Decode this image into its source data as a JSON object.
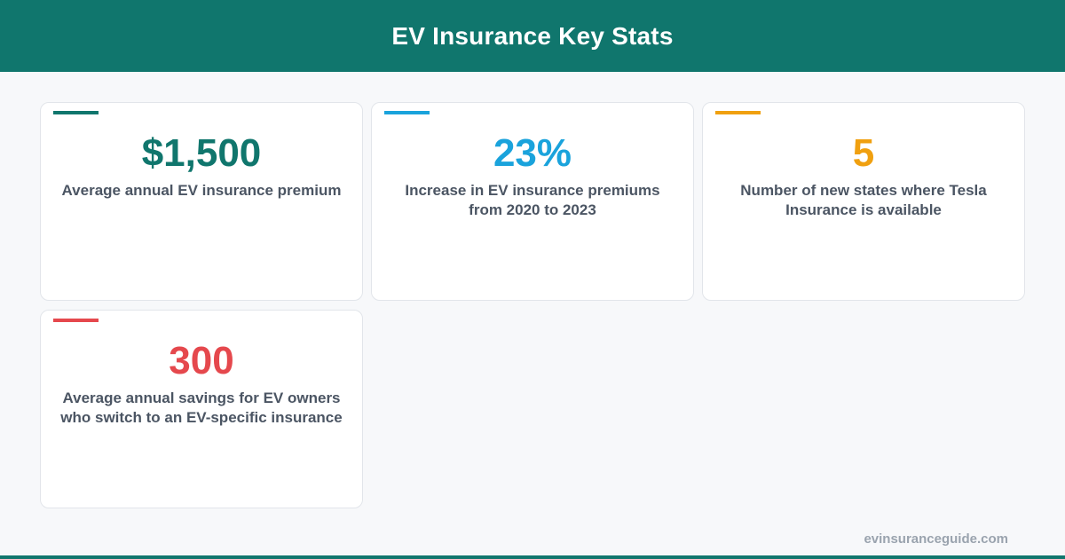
{
  "header": {
    "title": "EV Insurance Key Stats"
  },
  "cards": [
    {
      "value": "$1,500",
      "label": "Average annual EV insurance premium",
      "color": "#10766d"
    },
    {
      "value": "23%",
      "label": "Increase in EV insurance premiums from 2020 to 2023",
      "color": "#1aa3dc"
    },
    {
      "value": "5",
      "label": "Number of new states where Tesla Insurance is available",
      "color": "#f0a010"
    },
    {
      "value": "300",
      "label": "Average annual savings for EV owners who switch to an EV-specific insurance",
      "color": "#e5484d"
    }
  ],
  "footer": {
    "source": "evinsuranceguide.com"
  }
}
